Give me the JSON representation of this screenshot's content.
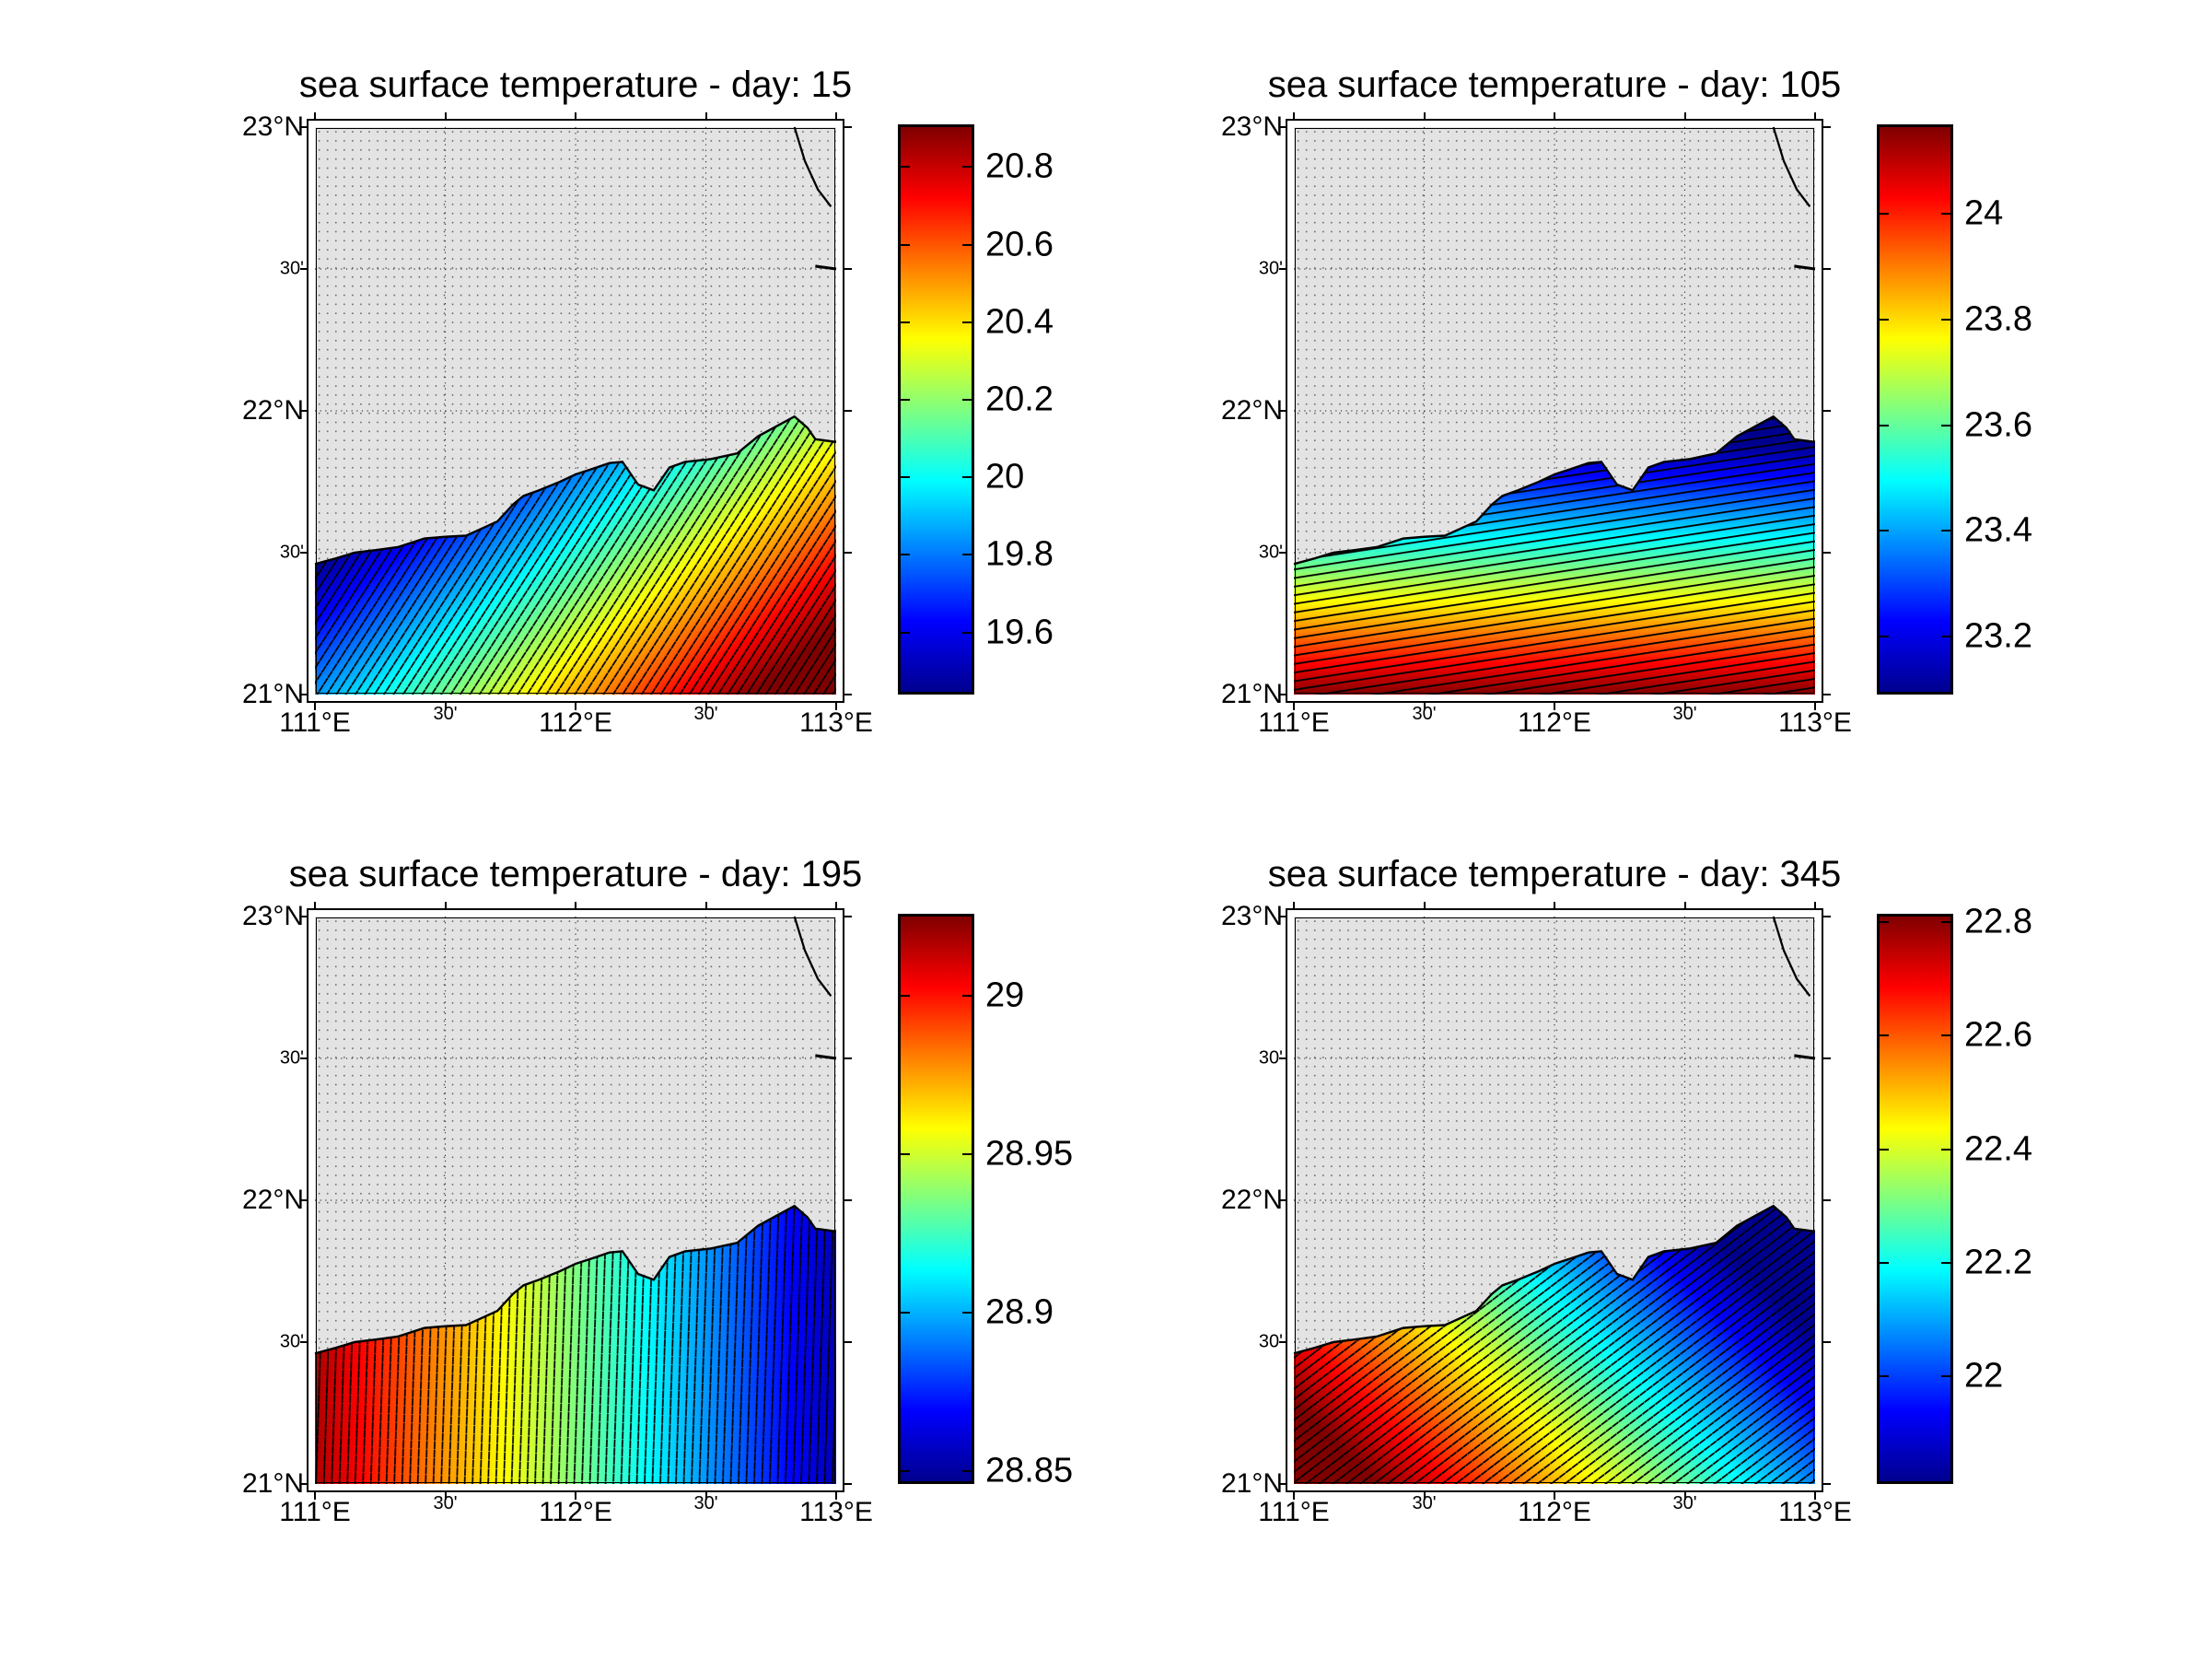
{
  "chart_data": [
    {
      "type": "heatmap",
      "title": "sea surface temperature - day: 15",
      "lat_ticks": [
        "23°N",
        "30'",
        "22°N",
        "30'",
        "21°N"
      ],
      "lon_ticks": [
        "111°E",
        "30'",
        "112°E",
        "30'",
        "113°E"
      ],
      "xlim": [
        111,
        113
      ],
      "ylim": [
        21,
        23
      ],
      "colorbar": {
        "min": 19.44,
        "max": 20.91,
        "ticks": [
          20.8,
          20.6,
          20.4,
          20.2,
          20,
          19.8,
          19.6
        ],
        "tick_labels": [
          "20.8",
          "20.6",
          "20.4",
          "20.2",
          "20",
          "19.8",
          "19.6"
        ],
        "colormap": "jet"
      },
      "pattern": "coolest near coast, warmest toward southeast; vectors pointing southwest"
    },
    {
      "type": "heatmap",
      "title": "sea surface temperature - day: 105",
      "lat_ticks": [
        "23°N",
        "30'",
        "22°N",
        "30'",
        "21°N"
      ],
      "lon_ticks": [
        "111°E",
        "30'",
        "112°E",
        "30'",
        "113°E"
      ],
      "xlim": [
        111,
        113
      ],
      "ylim": [
        21,
        23
      ],
      "colorbar": {
        "min": 23.09,
        "max": 24.17,
        "ticks": [
          24,
          23.8,
          23.6,
          23.4,
          23.2
        ],
        "tick_labels": [
          "24",
          "23.8",
          "23.6",
          "23.4",
          "23.2"
        ],
        "colormap": "jet"
      },
      "pattern": "coolest near coast, warmest toward south; vectors pointing west"
    },
    {
      "type": "heatmap",
      "title": "sea surface temperature - day: 195",
      "lat_ticks": [
        "23°N",
        "30'",
        "22°N",
        "30'",
        "21°N"
      ],
      "lon_ticks": [
        "111°E",
        "30'",
        "112°E",
        "30'",
        "113°E"
      ],
      "xlim": [
        111,
        113
      ],
      "ylim": [
        21,
        23
      ],
      "colorbar": {
        "min": 28.846,
        "max": 29.026,
        "ticks": [
          29,
          28.95,
          28.9,
          28.85
        ],
        "tick_labels": [
          "29",
          "28.95",
          "28.9",
          "28.85"
        ],
        "colormap": "jet"
      },
      "pattern": "warmest in west, coolest in east; vectors pointing north"
    },
    {
      "type": "heatmap",
      "title": "sea surface temperature - day: 345",
      "lat_ticks": [
        "23°N",
        "30'",
        "22°N",
        "30'",
        "21°N"
      ],
      "lon_ticks": [
        "111°E",
        "30'",
        "112°E",
        "30'",
        "113°E"
      ],
      "xlim": [
        111,
        113
      ],
      "ylim": [
        21,
        23
      ],
      "colorbar": {
        "min": 21.81,
        "max": 22.815,
        "ticks": [
          22.8,
          22.6,
          22.4,
          22.2,
          22
        ],
        "tick_labels": [
          "22.8",
          "22.6",
          "22.4",
          "22.2",
          "22"
        ],
        "colormap": "jet"
      },
      "pattern": "coolest near northeast coast, warmest toward southwest; vectors pointing southwest"
    }
  ],
  "colors": {
    "land": "#e3e3e3",
    "coast": "#000000",
    "jet_low": "#00008f",
    "jet_high": "#800000"
  }
}
